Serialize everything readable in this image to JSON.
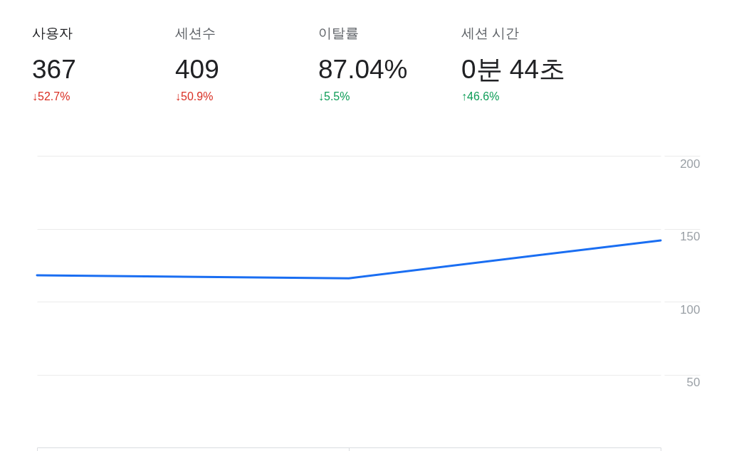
{
  "chart_data": [
    {
      "type": "other",
      "categories": [
        "사용자",
        "세션수",
        "이탈률",
        "세션 시간"
      ],
      "value_labels": [
        "367",
        "409",
        "87.04%",
        "0분 44초"
      ],
      "annotations": [
        "↓52.7%",
        "↓50.9%",
        "↓5.5%",
        "↑46.6%"
      ],
      "colors": [
        "#d93025",
        "#d93025",
        "#0f9d58",
        "#0f9d58"
      ]
    },
    {
      "type": "line",
      "categories": [
        null,
        null,
        null
      ],
      "series": [
        {
          "color": "#1a6ef2",
          "values": [
            118,
            116,
            142
          ]
        }
      ],
      "ylim": [
        0,
        200
      ],
      "yticks": [
        50,
        100,
        150,
        200
      ],
      "grid": "y",
      "tick_labels": "y"
    }
  ]
}
